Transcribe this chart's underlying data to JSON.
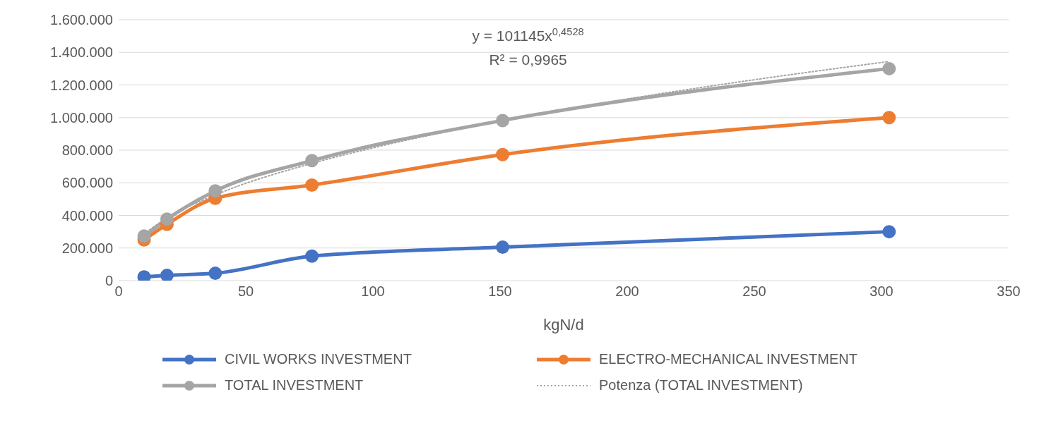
{
  "chart_data": {
    "type": "line",
    "xlabel": "kgN/d",
    "annotations": [
      "y = 101145x$^{0,4528}$",
      "R² = 0,9965"
    ],
    "xlim": [
      0,
      350
    ],
    "xticks": [
      0,
      50,
      100,
      150,
      200,
      250,
      300,
      350
    ],
    "ylim": [
      0,
      1600000
    ],
    "yticks": [
      {
        "value": 0,
        "label": "0"
      },
      {
        "value": 200000,
        "label": "200.000"
      },
      {
        "value": 400000,
        "label": "400.000"
      },
      {
        "value": 600000,
        "label": "600.000"
      },
      {
        "value": 800000,
        "label": "800.000"
      },
      {
        "value": 1000000,
        "label": "1.000.000"
      },
      {
        "value": 1200000,
        "label": "1.200.000"
      },
      {
        "value": 1400000,
        "label": "1.400.000"
      },
      {
        "value": 1600000,
        "label": "1.600.000"
      }
    ],
    "grid": "y",
    "legend": "bottom",
    "marker": "circle",
    "line_style": "solid",
    "series": [
      {
        "name": "CIVIL WORKS INVESTMENT",
        "color": "#4472c4",
        "x": [
          10,
          19,
          38,
          76,
          151,
          303
        ],
        "values": [
          23000,
          32000,
          45000,
          150000,
          205000,
          300000
        ]
      },
      {
        "name": "ELECTRO-MECHANICAL INVESTMENT",
        "color": "#ed7d31",
        "x": [
          10,
          19,
          38,
          76,
          151,
          303
        ],
        "values": [
          250000,
          345000,
          505000,
          586000,
          773000,
          1000000
        ]
      },
      {
        "name": "TOTAL INVESTMENT",
        "color": "#a5a5a5",
        "x": [
          10,
          19,
          38,
          76,
          151,
          303
        ],
        "values": [
          273000,
          377000,
          550000,
          736000,
          982000,
          1300000
        ]
      },
      {
        "name": "Potenza (TOTAL INVESTMENT)",
        "color": "#a5a5a5",
        "type": "line",
        "marker": "none",
        "line_style": "dotted",
        "x": [
          10,
          19,
          38,
          76,
          100,
          151,
          200,
          250,
          303
        ],
        "values": [
          287000,
          384000,
          525000,
          719000,
          814000,
          981000,
          1114000,
          1232000,
          1344000
        ]
      }
    ]
  }
}
